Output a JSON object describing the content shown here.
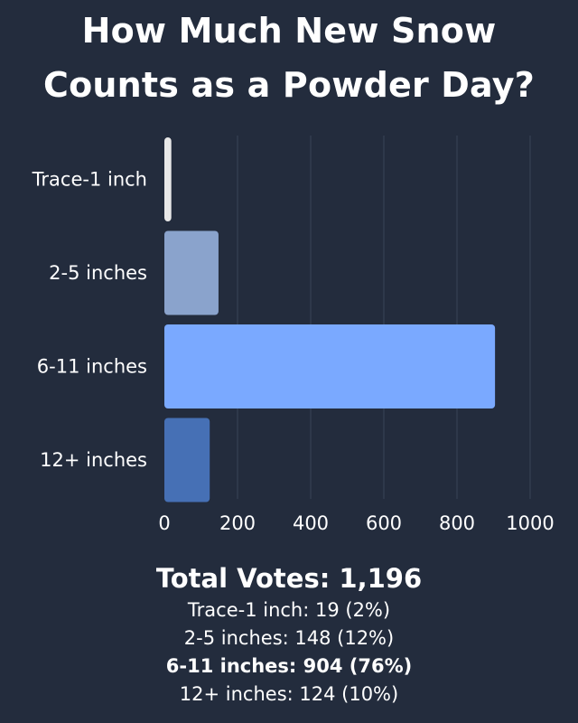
{
  "title_line1": "How Much New Snow",
  "title_line2": "Counts as a Powder Day?",
  "chart_data": {
    "type": "bar",
    "orientation": "horizontal",
    "categories": [
      "Trace-1 inch",
      "2-5 inches",
      "6-11 inches",
      "12+ inches"
    ],
    "values": [
      19,
      148,
      904,
      124
    ],
    "colors": [
      "#e8e8e8",
      "#8aa3cc",
      "#7aa9ff",
      "#4670b5"
    ],
    "xlim": [
      0,
      1000
    ],
    "xticks": [
      "0",
      "200",
      "400",
      "600",
      "800",
      "1000"
    ],
    "grid": true
  },
  "summary": {
    "total": "Total Votes: 1,196",
    "lines": [
      "Trace-1 inch: 19 (2%)",
      "2-5 inches: 148 (12%)",
      "6-11 inches: 904 (76%)",
      "12+ inches: 124 (10%)"
    ]
  }
}
